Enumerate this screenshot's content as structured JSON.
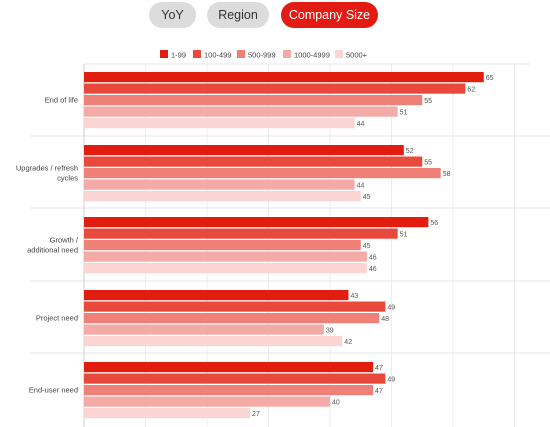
{
  "tabs": {
    "yoy": "YoY",
    "region": "Region",
    "company_size": "Company Size",
    "active": "company_size"
  },
  "colors": [
    "#e11d0f",
    "#e8493c",
    "#ee8078",
    "#f4aaa6",
    "#fbd5d3"
  ],
  "chart_data": {
    "type": "bar",
    "orientation": "horizontal",
    "title": "",
    "xlabel": "",
    "ylabel": "",
    "xlim": [
      0,
      70
    ],
    "grid": true,
    "legend_position": "top",
    "categories": [
      "End of life",
      "Upgrades / refresh cycles",
      "Growth / additional need",
      "Project need",
      "End-user need"
    ],
    "series": [
      {
        "name": "1-99",
        "values": [
          65,
          52,
          56,
          43,
          47
        ]
      },
      {
        "name": "100-499",
        "values": [
          62,
          55,
          51,
          49,
          49
        ]
      },
      {
        "name": "500-999",
        "values": [
          55,
          58,
          45,
          48,
          47
        ]
      },
      {
        "name": "1000-4999",
        "values": [
          51,
          44,
          46,
          39,
          40
        ]
      },
      {
        "name": "5000+",
        "values": [
          44,
          45,
          46,
          42,
          27
        ]
      }
    ]
  }
}
